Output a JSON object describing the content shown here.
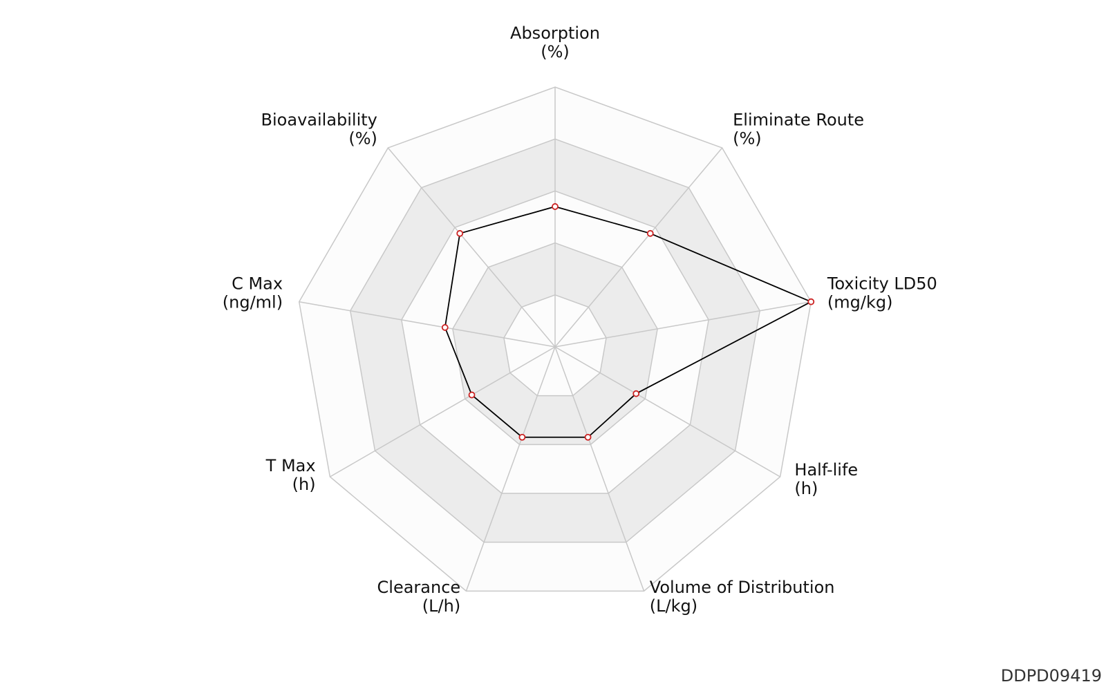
{
  "chart_data": {
    "type": "radar",
    "title": "",
    "axes": [
      {
        "name": "Absorption",
        "unit": "(%)"
      },
      {
        "name": "Eliminate Route",
        "unit": "(%)"
      },
      {
        "name": "Toxicity LD50",
        "unit": "(mg/kg)"
      },
      {
        "name": "Half-life",
        "unit": "(h)"
      },
      {
        "name": "Volume of Distribution",
        "unit": "(L/kg)"
      },
      {
        "name": "Clearance",
        "unit": "(L/h)"
      },
      {
        "name": "T Max",
        "unit": "(h)"
      },
      {
        "name": "C Max",
        "unit": "(ng/ml)"
      },
      {
        "name": "Bioavailability",
        "unit": "(%)"
      }
    ],
    "series": [
      {
        "values": [
          0.54,
          0.57,
          1.0,
          0.36,
          0.37,
          0.37,
          0.37,
          0.43,
          0.57
        ]
      }
    ],
    "scale": [
      0,
      1
    ],
    "rings": 5,
    "colors": {
      "line": "#000000",
      "marker_stroke": "#cc2222",
      "marker_fill": "#ffffff",
      "band_shaded": "#ececec",
      "band_light": "#fcfcfc",
      "grid": "#c8c8c8"
    }
  },
  "footer": {
    "id": "DDPD09419"
  }
}
